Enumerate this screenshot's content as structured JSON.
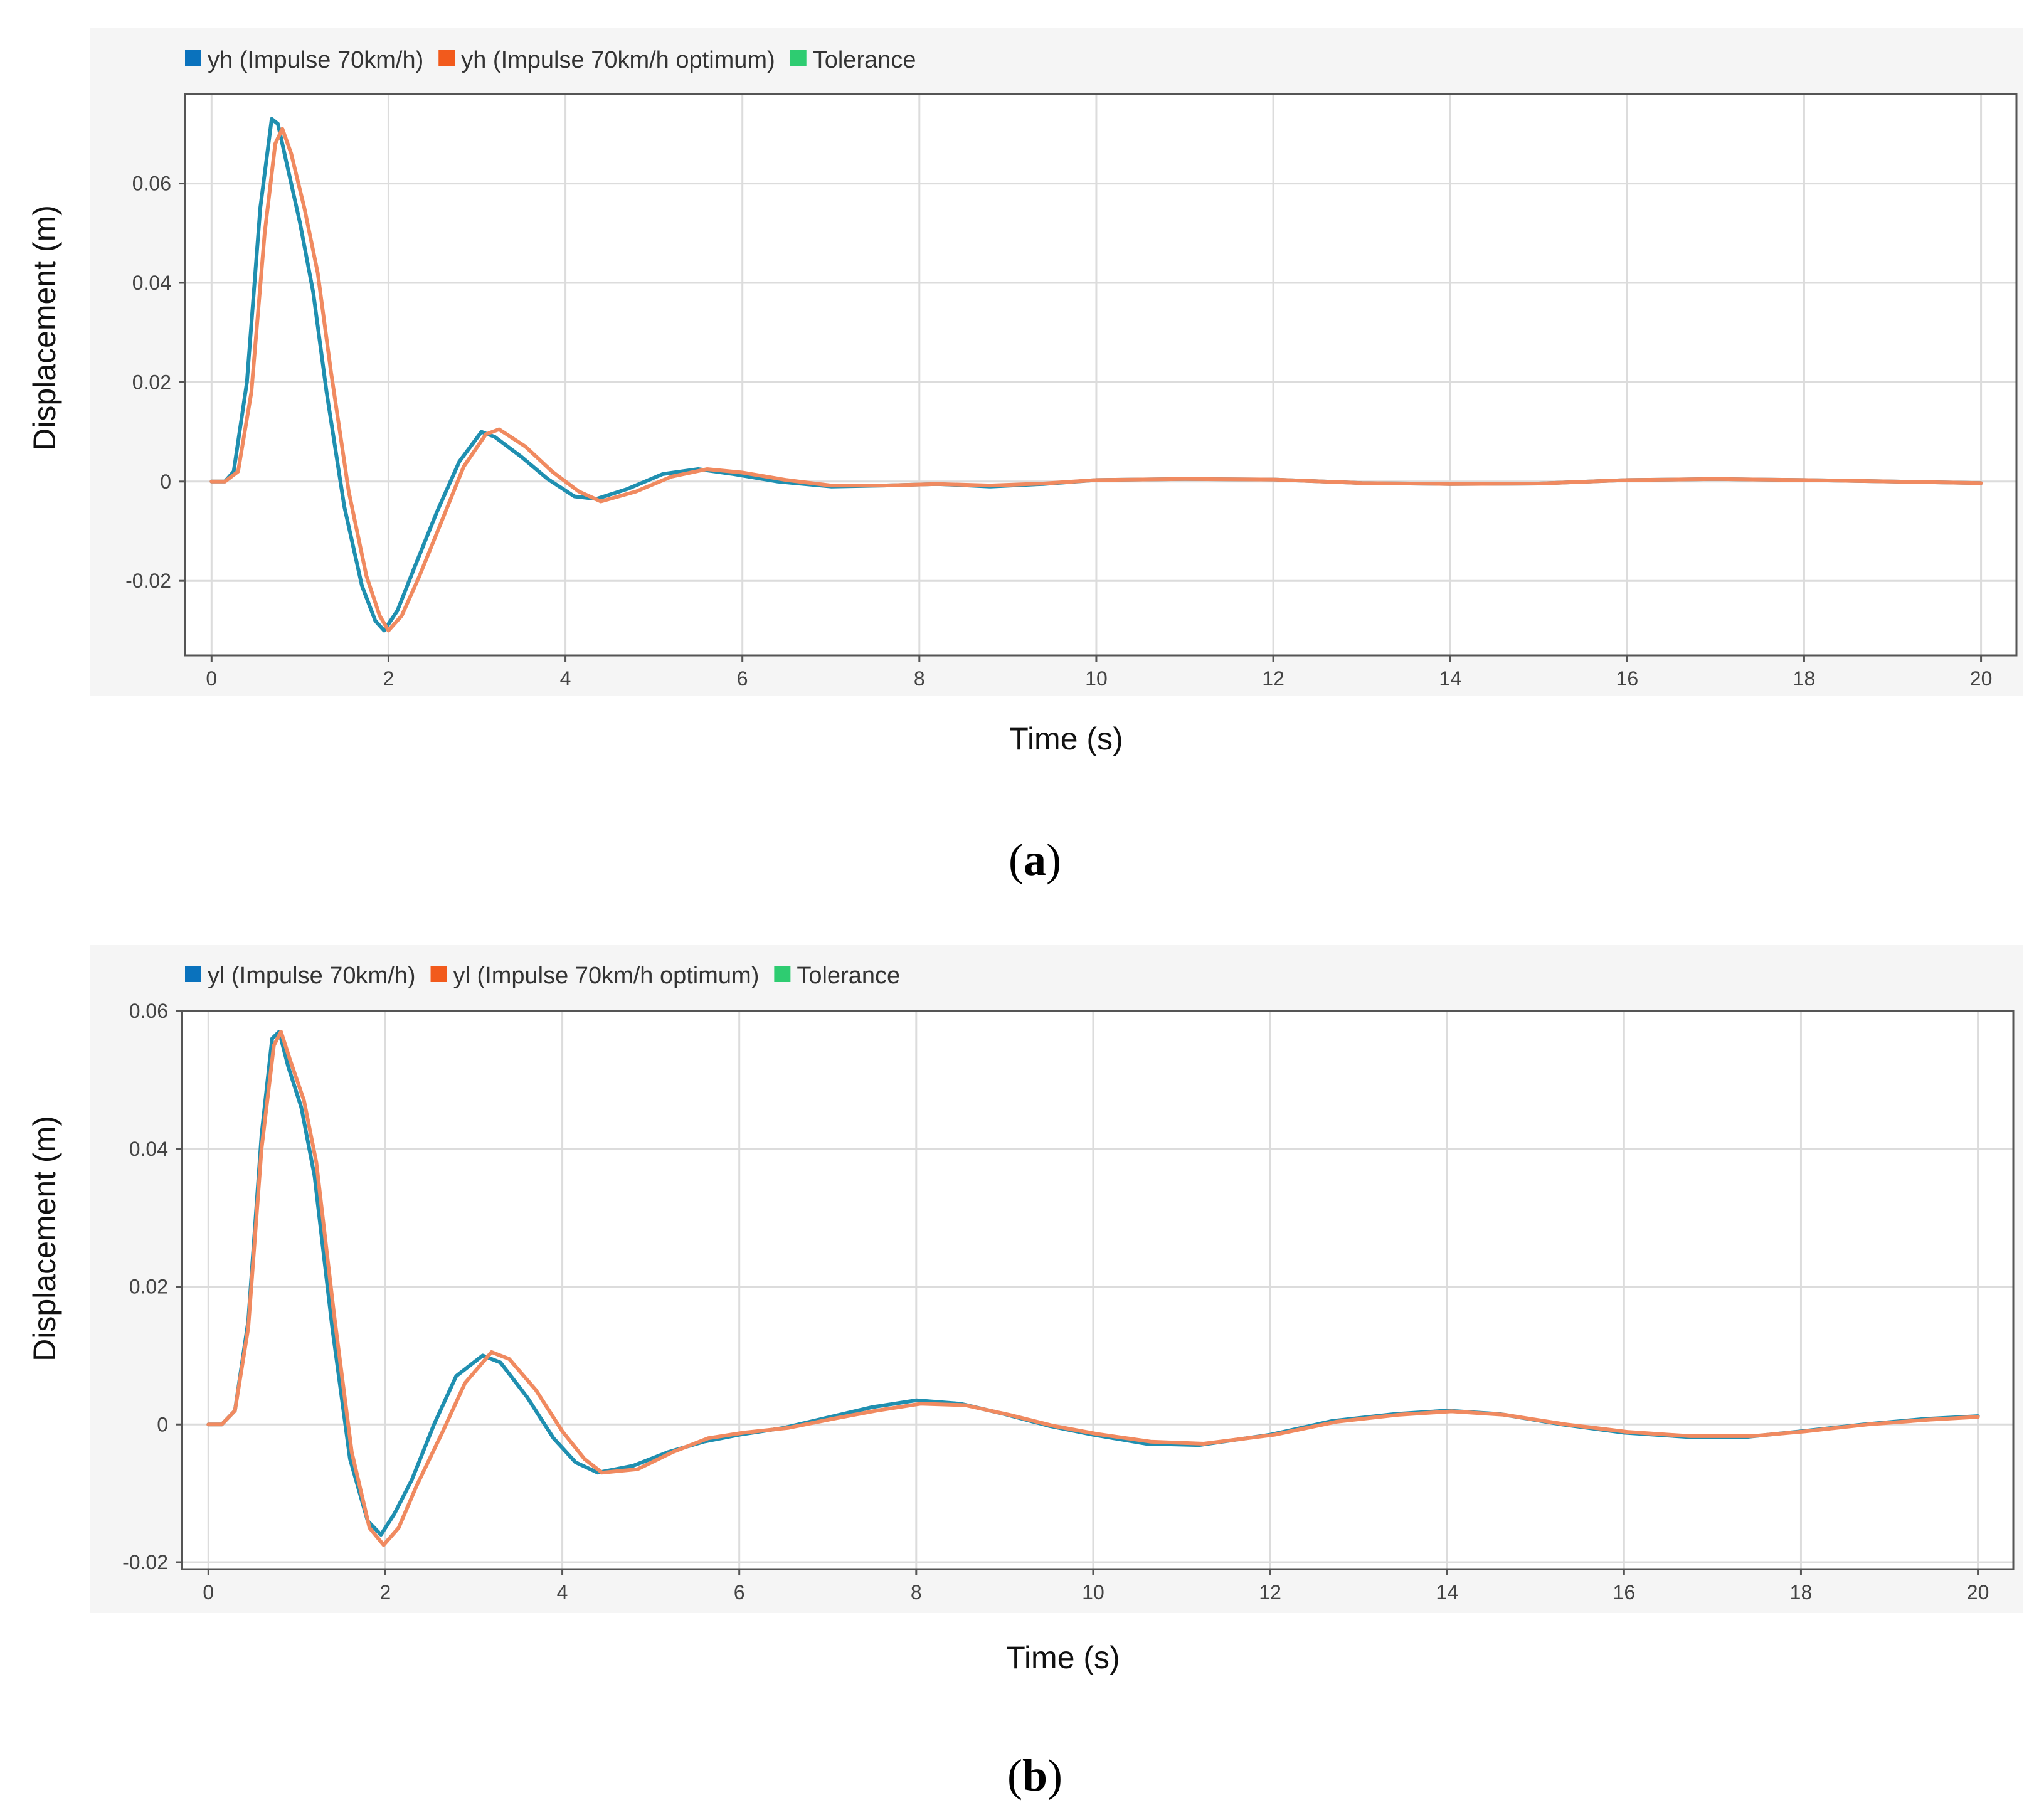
{
  "chart_data": [
    {
      "type": "line",
      "panel_label": "a",
      "xlabel": "Time (s)",
      "ylabel": "Displacement (m)",
      "xlim": [
        -0.3,
        20.4
      ],
      "ylim": [
        -0.035,
        0.078
      ],
      "x_ticks": [
        0,
        2,
        4,
        6,
        8,
        10,
        12,
        14,
        16,
        18,
        20
      ],
      "x_tick_labels": [
        "0",
        "2",
        "4",
        "6",
        "8",
        "10",
        "12",
        "14",
        "16",
        "18",
        "20"
      ],
      "y_ticks": [
        0.06,
        0.04,
        0.02,
        0,
        -0.02
      ],
      "y_tick_labels": [
        "0.06",
        "0.04",
        "0.02",
        "0",
        "-0.02"
      ],
      "grid": true,
      "legend_position": "top-left",
      "legend": [
        {
          "label": "yh (Impulse 70km/h)",
          "color": "#0a72bd"
        },
        {
          "label": "yh (Impulse 70km/h optimum)",
          "color": "#f25a1c"
        },
        {
          "label": "Tolerance",
          "color": "#2ecc71"
        }
      ],
      "series": [
        {
          "name": "yh (Impulse 70km/h)",
          "color": "#1f8fb0",
          "x": [
            0,
            0.15,
            0.25,
            0.4,
            0.55,
            0.68,
            0.75,
            0.85,
            1.0,
            1.15,
            1.3,
            1.5,
            1.7,
            1.85,
            1.95,
            2.1,
            2.3,
            2.55,
            2.8,
            3.05,
            3.2,
            3.5,
            3.8,
            4.1,
            4.35,
            4.7,
            5.1,
            5.5,
            5.9,
            6.4,
            7.0,
            7.6,
            8.2,
            8.8,
            9.4,
            10.0,
            11.0,
            12.0,
            13.0,
            14.0,
            15.0,
            16.0,
            17.0,
            18.0,
            19.0,
            20.0
          ],
          "y": [
            0,
            0,
            0.002,
            0.02,
            0.055,
            0.073,
            0.072,
            0.064,
            0.052,
            0.038,
            0.018,
            -0.005,
            -0.021,
            -0.028,
            -0.03,
            -0.026,
            -0.017,
            -0.006,
            0.004,
            0.01,
            0.009,
            0.005,
            0.0005,
            -0.003,
            -0.0035,
            -0.0015,
            0.0015,
            0.0025,
            0.0015,
            0.0,
            -0.001,
            -0.0008,
            -0.0005,
            -0.001,
            -0.0005,
            0.0003,
            0.0005,
            0.0004,
            -0.0003,
            -0.0005,
            -0.0004,
            0.0003,
            0.0005,
            0.0003,
            0.0,
            -0.0003
          ]
        },
        {
          "name": "yh (Impulse 70km/h optimum)",
          "color": "#f08a60",
          "x": [
            0,
            0.15,
            0.3,
            0.45,
            0.6,
            0.72,
            0.8,
            0.9,
            1.05,
            1.2,
            1.35,
            1.55,
            1.75,
            1.9,
            2.0,
            2.15,
            2.35,
            2.6,
            2.85,
            3.1,
            3.25,
            3.55,
            3.85,
            4.15,
            4.4,
            4.8,
            5.2,
            5.6,
            6.0,
            6.5,
            7.0,
            7.6,
            8.2,
            8.8,
            9.4,
            10.0,
            11.0,
            12.0,
            13.0,
            14.0,
            15.0,
            16.0,
            17.0,
            18.0,
            19.0,
            20.0
          ],
          "y": [
            0,
            0,
            0.002,
            0.018,
            0.05,
            0.068,
            0.071,
            0.066,
            0.055,
            0.042,
            0.022,
            -0.002,
            -0.019,
            -0.027,
            -0.03,
            -0.027,
            -0.019,
            -0.008,
            0.003,
            0.0095,
            0.0105,
            0.007,
            0.002,
            -0.002,
            -0.004,
            -0.002,
            0.001,
            0.0025,
            0.0018,
            0.0003,
            -0.0008,
            -0.0008,
            -0.0005,
            -0.0008,
            -0.0004,
            0.0003,
            0.0005,
            0.0004,
            -0.0003,
            -0.0005,
            -0.0004,
            0.0003,
            0.0005,
            0.0003,
            0.0,
            -0.0003
          ]
        }
      ]
    },
    {
      "type": "line",
      "panel_label": "b",
      "xlabel": "Time (s)",
      "ylabel": "Displacement (m)",
      "xlim": [
        -0.3,
        20.4
      ],
      "ylim": [
        -0.021,
        0.06
      ],
      "x_ticks": [
        0,
        2,
        4,
        6,
        8,
        10,
        12,
        14,
        16,
        18,
        20
      ],
      "x_tick_labels": [
        "0",
        "2",
        "4",
        "6",
        "8",
        "10",
        "12",
        "14",
        "16",
        "18",
        "20"
      ],
      "y_ticks": [
        0.06,
        0.04,
        0.02,
        0,
        -0.02
      ],
      "y_tick_labels": [
        "0.06",
        "0.04",
        "0.02",
        "0",
        "-0.02"
      ],
      "grid": true,
      "legend_position": "top-left",
      "legend": [
        {
          "label": "yl (Impulse 70km/h)",
          "color": "#0a72bd"
        },
        {
          "label": "yl (Impulse 70km/h optimum)",
          "color": "#f25a1c"
        },
        {
          "label": "Tolerance",
          "color": "#2ecc71"
        }
      ],
      "series": [
        {
          "name": "yl (Impulse 70km/h)",
          "color": "#1f8fb0",
          "x": [
            0,
            0.15,
            0.3,
            0.45,
            0.6,
            0.72,
            0.8,
            0.9,
            1.05,
            1.2,
            1.4,
            1.6,
            1.8,
            1.95,
            2.1,
            2.3,
            2.55,
            2.8,
            3.1,
            3.3,
            3.6,
            3.9,
            4.15,
            4.4,
            4.8,
            5.2,
            5.6,
            6.0,
            6.5,
            7.0,
            7.5,
            8.0,
            8.5,
            9.0,
            9.5,
            10.0,
            10.6,
            11.2,
            12.0,
            12.7,
            13.4,
            14.0,
            14.6,
            15.3,
            16.0,
            16.7,
            17.4,
            18.0,
            18.7,
            19.4,
            20.0
          ],
          "y": [
            0,
            0,
            0.002,
            0.015,
            0.042,
            0.056,
            0.057,
            0.052,
            0.046,
            0.036,
            0.014,
            -0.005,
            -0.014,
            -0.016,
            -0.013,
            -0.008,
            0.0,
            0.007,
            0.01,
            0.009,
            0.004,
            -0.002,
            -0.0055,
            -0.007,
            -0.006,
            -0.004,
            -0.0025,
            -0.0015,
            -0.0005,
            0.001,
            0.0025,
            0.0035,
            0.003,
            0.0015,
            -0.0002,
            -0.0015,
            -0.0028,
            -0.003,
            -0.0015,
            0.0005,
            0.0015,
            0.002,
            0.0015,
            0.0,
            -0.0012,
            -0.0018,
            -0.0018,
            -0.001,
            0.0,
            0.0008,
            0.0012
          ]
        },
        {
          "name": "yl (Impulse 70km/h optimum)",
          "color": "#f08a60",
          "x": [
            0,
            0.15,
            0.3,
            0.45,
            0.6,
            0.74,
            0.82,
            0.92,
            1.08,
            1.22,
            1.42,
            1.62,
            1.82,
            1.98,
            2.15,
            2.35,
            2.65,
            2.9,
            3.2,
            3.4,
            3.7,
            4.0,
            4.25,
            4.45,
            4.85,
            5.25,
            5.65,
            6.05,
            6.55,
            7.05,
            7.55,
            8.05,
            8.55,
            9.05,
            9.55,
            10.05,
            10.65,
            11.25,
            12.05,
            12.75,
            13.45,
            14.05,
            14.65,
            15.35,
            16.05,
            16.75,
            17.45,
            18.05,
            18.75,
            19.45,
            20.0
          ],
          "y": [
            0,
            0,
            0.002,
            0.014,
            0.04,
            0.055,
            0.057,
            0.053,
            0.047,
            0.038,
            0.016,
            -0.004,
            -0.015,
            -0.0175,
            -0.015,
            -0.009,
            -0.001,
            0.006,
            0.0105,
            0.0095,
            0.005,
            -0.001,
            -0.005,
            -0.007,
            -0.0065,
            -0.004,
            -0.002,
            -0.0012,
            -0.0005,
            0.0008,
            0.002,
            0.003,
            0.0028,
            0.0014,
            -0.0002,
            -0.0014,
            -0.0025,
            -0.0028,
            -0.0015,
            0.0004,
            0.0014,
            0.0019,
            0.0014,
            0.0,
            -0.0011,
            -0.0017,
            -0.0017,
            -0.001,
            0.0,
            0.0007,
            0.0011
          ]
        }
      ]
    }
  ]
}
